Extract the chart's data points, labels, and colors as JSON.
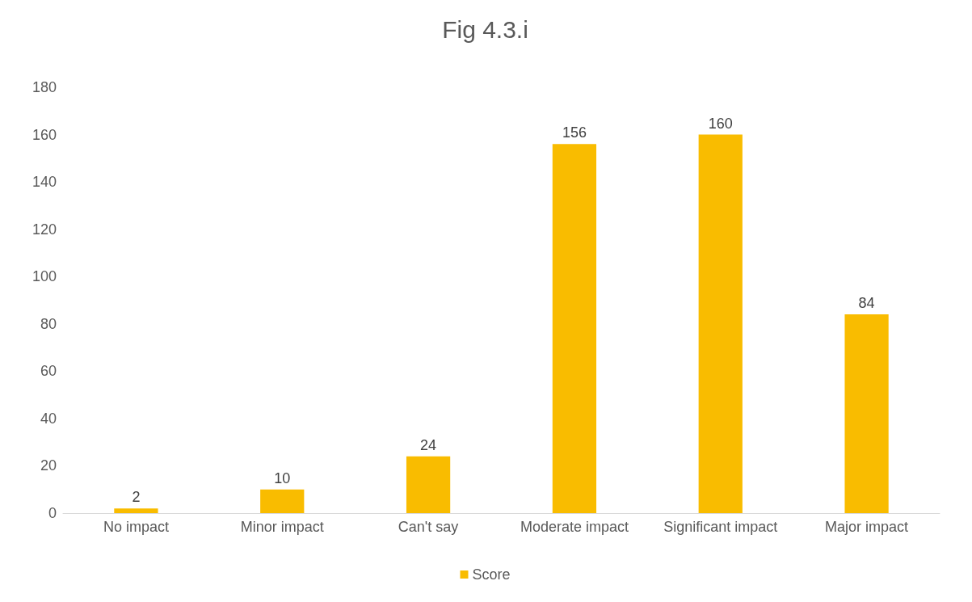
{
  "chart_data": {
    "type": "bar",
    "title": "Fig 4.3.i",
    "categories": [
      "No impact",
      "Minor impact",
      "Can't say",
      "Moderate impact",
      "Significant impact",
      "Major impact"
    ],
    "series": [
      {
        "name": "Score",
        "color": "#f9bc00",
        "values": [
          2,
          10,
          24,
          156,
          160,
          84
        ]
      }
    ],
    "ylim": [
      0,
      180
    ],
    "yticks": [
      0,
      20,
      40,
      60,
      80,
      100,
      120,
      140,
      160,
      180
    ],
    "grid": false,
    "legend": "bottom",
    "data_labels": true
  }
}
